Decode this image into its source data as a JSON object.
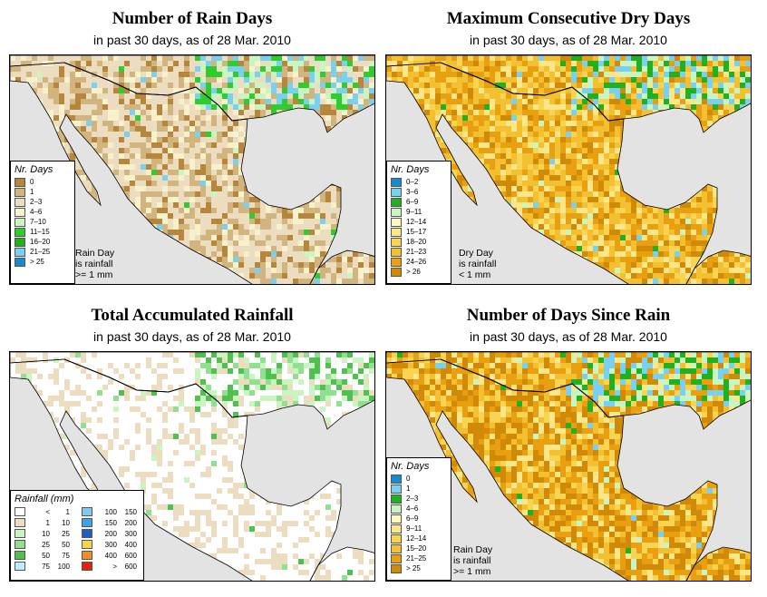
{
  "panels": [
    {
      "id": "rain-days",
      "title": "Number of Rain Days",
      "subtitle": "in past 30 days, as of  28 Mar. 2010",
      "legend_title": "Nr. Days",
      "legend": [
        {
          "label": "0",
          "color": "#b8863a"
        },
        {
          "label": "1",
          "color": "#d2b47e"
        },
        {
          "label": "2–3",
          "color": "#ecdcc0"
        },
        {
          "label": "4–6",
          "color": "#f8f2cc"
        },
        {
          "label": "7–10",
          "color": "#c8f5c0"
        },
        {
          "label": "11–15",
          "color": "#2ecc2e"
        },
        {
          "label": "16–20",
          "color": "#20b020"
        },
        {
          "label": "21–25",
          "color": "#7ad0f0"
        },
        {
          "label": "> 25",
          "color": "#1a8ad0"
        }
      ],
      "note": [
        "Rain Day",
        "is rainfall",
        ">= 1 mm"
      ],
      "land_palette": [
        "#ecdcc0",
        "#ecdcc0",
        "#ecdcc0",
        "#d2b47e",
        "#d2b47e",
        "#b8863a",
        "#f8f2cc"
      ],
      "accent_palette": [
        "#c8f5c0",
        "#2ecc2e",
        "#7ad0f0"
      ]
    },
    {
      "id": "dry-days",
      "title": "Maximum Consecutive Dry Days",
      "subtitle": "in past 30 days, as of  28 Mar. 2010",
      "legend_title": "Nr. Days",
      "legend": [
        {
          "label": "0–2",
          "color": "#1a8ad0"
        },
        {
          "label": "3–6",
          "color": "#7ad0f0"
        },
        {
          "label": "6–9",
          "color": "#20b020"
        },
        {
          "label": "9–11",
          "color": "#c8f5c0"
        },
        {
          "label": "12–14",
          "color": "#fff8c0"
        },
        {
          "label": "15–17",
          "color": "#fbe68a"
        },
        {
          "label": "18–20",
          "color": "#f8d452"
        },
        {
          "label": "21–23",
          "color": "#f2c030"
        },
        {
          "label": "24–26",
          "color": "#e8a010"
        },
        {
          "label": "> 26",
          "color": "#d08a08"
        }
      ],
      "note": [
        "Dry Day",
        "is rainfall",
        "< 1 mm"
      ],
      "land_palette": [
        "#e8a010",
        "#f2c030",
        "#d08a08",
        "#f8d452",
        "#e8a010",
        "#fbe68a",
        "#f2c030"
      ],
      "accent_palette": [
        "#20b020",
        "#c8f5c0",
        "#7ad0f0"
      ]
    },
    {
      "id": "accum-rainfall",
      "title": "Total Accumulated Rainfall",
      "subtitle": "in past 30 days, as of  28 Mar. 2010",
      "legend_title": "Rainfall (mm)",
      "legend": [
        {
          "label": "< 1",
          "low": "<",
          "high": "1",
          "color": "#ffffff"
        },
        {
          "label": "1  10",
          "low": "1",
          "high": "10",
          "color": "#ecdcc0"
        },
        {
          "label": "10  25",
          "low": "10",
          "high": "25",
          "color": "#c8f5c0"
        },
        {
          "label": "25  50",
          "low": "25",
          "high": "50",
          "color": "#90e090"
        },
        {
          "label": "50  75",
          "low": "50",
          "high": "75",
          "color": "#50c050"
        },
        {
          "label": "75  100",
          "low": "75",
          "high": "100",
          "color": "#c0ecf8"
        },
        {
          "label": "100  150",
          "low": "100",
          "high": "150",
          "color": "#80c8f0"
        },
        {
          "label": "150  200",
          "low": "150",
          "high": "200",
          "color": "#40a0e8"
        },
        {
          "label": "200  300",
          "low": "200",
          "high": "300",
          "color": "#2060c0"
        },
        {
          "label": "300  400",
          "low": "300",
          "high": "400",
          "color": "#f8d452"
        },
        {
          "label": "400  600",
          "low": "400",
          "high": "600",
          "color": "#f09020"
        },
        {
          "label": "> 600",
          "low": ">",
          "high": "600",
          "color": "#e82010"
        }
      ],
      "land_palette": [
        "#ffffff",
        "#ffffff",
        "#ffffff",
        "#ecdcc0",
        "#ffffff",
        "#ecdcc0",
        "#ffffff"
      ],
      "accent_palette": [
        "#c8f5c0",
        "#90e090",
        "#50c050"
      ]
    },
    {
      "id": "since-rain",
      "title": "Number of Days Since Rain",
      "subtitle": "in past 30 days, as of  28 Mar. 2010",
      "legend_title": "Nr. Days",
      "legend": [
        {
          "label": "0",
          "color": "#1a8ad0"
        },
        {
          "label": "1",
          "color": "#7ad0f0"
        },
        {
          "label": "2–3",
          "color": "#20b020"
        },
        {
          "label": "4–6",
          "color": "#c8f5c0"
        },
        {
          "label": "6–9",
          "color": "#fff8c0"
        },
        {
          "label": "9–11",
          "color": "#fbe68a"
        },
        {
          "label": "12–14",
          "color": "#f8d452"
        },
        {
          "label": "15–20",
          "color": "#f2c030"
        },
        {
          "label": "21–25",
          "color": "#e8a010"
        },
        {
          "label": "> 25",
          "color": "#d08a08"
        }
      ],
      "note": [
        "Rain Day",
        "is rainfall",
        ">= 1 mm"
      ],
      "land_palette": [
        "#e8a010",
        "#f2c030",
        "#d08a08",
        "#e8a010",
        "#f8d452",
        "#d08a08",
        "#fbe68a"
      ],
      "accent_palette": [
        "#20b020",
        "#c8f5c0",
        "#7ad0f0"
      ]
    }
  ],
  "colors": {
    "water": "#e3e3e3",
    "border": "#000000"
  }
}
